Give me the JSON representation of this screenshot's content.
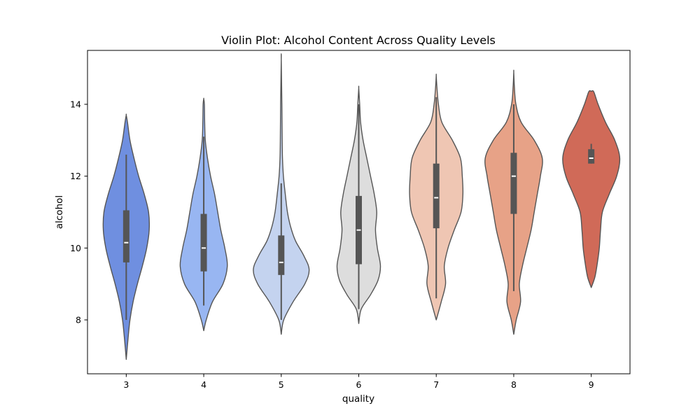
{
  "chart_data": {
    "type": "violin",
    "title": "Violin Plot: Alcohol Content Across Quality Levels",
    "xlabel": "quality",
    "ylabel": "alcohol",
    "categories": [
      "3",
      "4",
      "5",
      "6",
      "7",
      "8",
      "9"
    ],
    "ylim": [
      6.5,
      15.5
    ],
    "yticks": [
      8,
      10,
      12,
      14
    ],
    "grid": false,
    "palette": [
      "#6f8fe0",
      "#98b6f2",
      "#c4d3ef",
      "#dddddd",
      "#efc6b3",
      "#e7a287",
      "#d06a58"
    ],
    "violins": [
      {
        "category": "3",
        "density": [
          [
            6.9,
            0.0
          ],
          [
            7.5,
            0.06
          ],
          [
            8.0,
            0.12
          ],
          [
            8.5,
            0.22
          ],
          [
            9.0,
            0.36
          ],
          [
            9.5,
            0.52
          ],
          [
            10.0,
            0.66
          ],
          [
            10.5,
            0.74
          ],
          [
            11.0,
            0.72
          ],
          [
            11.5,
            0.58
          ],
          [
            12.0,
            0.4
          ],
          [
            12.5,
            0.25
          ],
          [
            13.0,
            0.12
          ],
          [
            13.5,
            0.04
          ],
          [
            13.7,
            0.0
          ]
        ],
        "q1": 9.6,
        "median": 10.15,
        "q3": 11.05,
        "whisker_low": 8.0,
        "whisker_high": 12.6
      },
      {
        "category": "4",
        "density": [
          [
            7.7,
            0.0
          ],
          [
            8.0,
            0.08
          ],
          [
            8.5,
            0.28
          ],
          [
            9.0,
            0.62
          ],
          [
            9.5,
            0.76
          ],
          [
            10.0,
            0.68
          ],
          [
            10.5,
            0.55
          ],
          [
            11.0,
            0.45
          ],
          [
            11.5,
            0.35
          ],
          [
            12.0,
            0.22
          ],
          [
            12.5,
            0.12
          ],
          [
            13.0,
            0.05
          ],
          [
            13.5,
            0.03
          ],
          [
            14.0,
            0.02
          ],
          [
            14.15,
            0.0
          ]
        ],
        "q1": 9.35,
        "median": 10.0,
        "q3": 10.95,
        "whisker_low": 8.4,
        "whisker_high": 13.1
      },
      {
        "category": "5",
        "density": [
          [
            7.6,
            0.0
          ],
          [
            8.0,
            0.08
          ],
          [
            8.5,
            0.38
          ],
          [
            9.0,
            0.76
          ],
          [
            9.4,
            0.9
          ],
          [
            9.8,
            0.72
          ],
          [
            10.2,
            0.46
          ],
          [
            10.6,
            0.3
          ],
          [
            11.0,
            0.2
          ],
          [
            11.5,
            0.13
          ],
          [
            12.0,
            0.07
          ],
          [
            12.5,
            0.04
          ],
          [
            13.0,
            0.03
          ],
          [
            14.0,
            0.02
          ],
          [
            15.25,
            0.0
          ]
        ],
        "q1": 9.25,
        "median": 9.6,
        "q3": 10.35,
        "whisker_low": 8.0,
        "whisker_high": 11.8
      },
      {
        "category": "6",
        "density": [
          [
            7.9,
            0.0
          ],
          [
            8.3,
            0.08
          ],
          [
            8.7,
            0.38
          ],
          [
            9.1,
            0.62
          ],
          [
            9.5,
            0.7
          ],
          [
            10.0,
            0.6
          ],
          [
            10.5,
            0.54
          ],
          [
            11.0,
            0.58
          ],
          [
            11.5,
            0.5
          ],
          [
            12.0,
            0.38
          ],
          [
            12.5,
            0.26
          ],
          [
            13.0,
            0.14
          ],
          [
            13.5,
            0.06
          ],
          [
            14.0,
            0.03
          ],
          [
            14.45,
            0.0
          ]
        ],
        "q1": 9.55,
        "median": 10.5,
        "q3": 11.45,
        "whisker_low": 8.3,
        "whisker_high": 14.0
      },
      {
        "category": "7",
        "density": [
          [
            8.0,
            0.0
          ],
          [
            8.5,
            0.16
          ],
          [
            9.0,
            0.3
          ],
          [
            9.5,
            0.26
          ],
          [
            10.0,
            0.38
          ],
          [
            10.5,
            0.58
          ],
          [
            11.0,
            0.8
          ],
          [
            11.5,
            0.86
          ],
          [
            12.0,
            0.84
          ],
          [
            12.5,
            0.78
          ],
          [
            13.0,
            0.52
          ],
          [
            13.5,
            0.18
          ],
          [
            14.0,
            0.07
          ],
          [
            14.5,
            0.02
          ],
          [
            14.8,
            0.0
          ]
        ],
        "q1": 10.55,
        "median": 11.4,
        "q3": 12.35,
        "whisker_low": 8.6,
        "whisker_high": 14.2
      },
      {
        "category": "8",
        "density": [
          [
            7.6,
            0.0
          ],
          [
            8.0,
            0.08
          ],
          [
            8.5,
            0.22
          ],
          [
            9.0,
            0.18
          ],
          [
            9.5,
            0.28
          ],
          [
            10.0,
            0.42
          ],
          [
            10.5,
            0.56
          ],
          [
            11.0,
            0.66
          ],
          [
            11.5,
            0.76
          ],
          [
            12.0,
            0.86
          ],
          [
            12.5,
            0.92
          ],
          [
            13.0,
            0.66
          ],
          [
            13.5,
            0.24
          ],
          [
            14.0,
            0.07
          ],
          [
            14.5,
            0.02
          ],
          [
            14.9,
            0.0
          ]
        ],
        "q1": 10.95,
        "median": 12.0,
        "q3": 12.65,
        "whisker_low": 8.8,
        "whisker_high": 14.0
      },
      {
        "category": "9",
        "density": [
          [
            8.9,
            0.0
          ],
          [
            9.2,
            0.12
          ],
          [
            9.6,
            0.2
          ],
          [
            10.0,
            0.26
          ],
          [
            10.5,
            0.3
          ],
          [
            11.0,
            0.36
          ],
          [
            11.5,
            0.58
          ],
          [
            12.0,
            0.82
          ],
          [
            12.5,
            0.92
          ],
          [
            13.0,
            0.76
          ],
          [
            13.5,
            0.46
          ],
          [
            14.0,
            0.22
          ],
          [
            14.35,
            0.08
          ],
          [
            14.36,
            0.0
          ]
        ],
        "q1": 12.35,
        "median": 12.5,
        "q3": 12.75,
        "whisker_low": 12.35,
        "whisker_high": 12.9
      }
    ]
  }
}
